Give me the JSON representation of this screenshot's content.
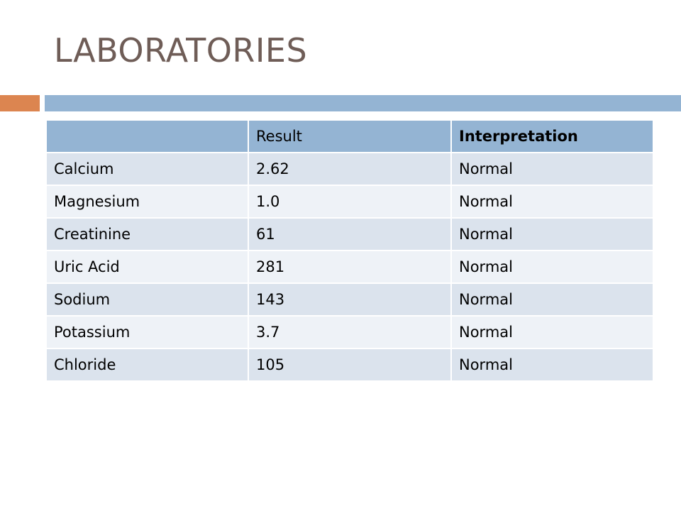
{
  "slide": {
    "title": "LABORATORIES"
  },
  "colors": {
    "title_text": "#6f5d57",
    "accent_orange": "#dc8550",
    "accent_blue": "#94b4d3",
    "table_header_bg": "#94b4d3",
    "table_row_dark": "#dbe3ed",
    "table_row_light": "#eef2f7"
  },
  "table": {
    "headers": [
      "",
      "Result",
      "Interpretation"
    ],
    "rows": [
      [
        "Calcium",
        "2.62",
        "Normal"
      ],
      [
        "Magnesium",
        "1.0",
        "Normal"
      ],
      [
        "Creatinine",
        "61",
        "Normal"
      ],
      [
        "Uric Acid",
        "281",
        "Normal"
      ],
      [
        "Sodium",
        "143",
        "Normal"
      ],
      [
        "Potassium",
        "3.7",
        "Normal"
      ],
      [
        "Chloride",
        "105",
        "Normal"
      ]
    ]
  }
}
